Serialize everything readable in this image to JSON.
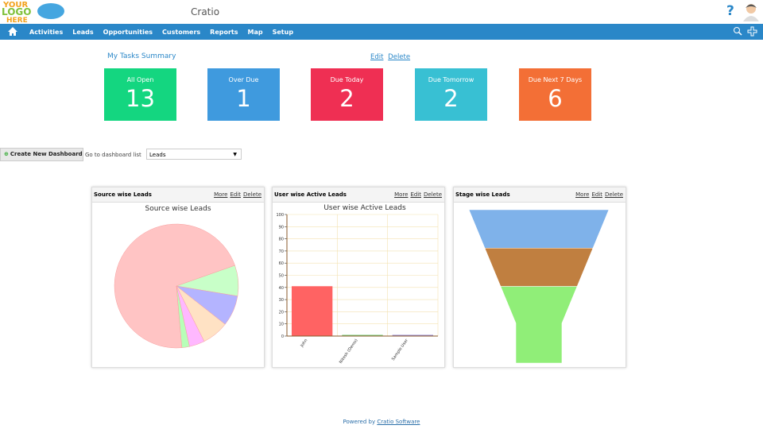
{
  "header": {
    "logo": [
      "YOUR",
      "LOGO",
      "HERE"
    ],
    "app_name": "Cratio",
    "help": "?"
  },
  "nav": {
    "items": [
      "Activities",
      "Leads",
      "Opportunities",
      "Customers",
      "Reports",
      "Map",
      "Setup"
    ]
  },
  "tasks": {
    "title": "My Tasks Summary",
    "actions": [
      "Edit",
      "Delete"
    ],
    "tiles": [
      {
        "label": "All Open",
        "value": 13,
        "color": "#14d680"
      },
      {
        "label": "Over Due",
        "value": 1,
        "color": "#3f9ade"
      },
      {
        "label": "Due Today",
        "value": 2,
        "color": "#ef2f53"
      },
      {
        "label": "Due Tomorrow",
        "value": 2,
        "color": "#38c0d3"
      },
      {
        "label": "Due Next 7 Days",
        "value": 6,
        "color": "#f36f36"
      }
    ]
  },
  "dashboard_bar": {
    "create_button": "Create New Dashboard",
    "goto_label": "Go to dashboard list",
    "selected": "Leads"
  },
  "widgets": [
    {
      "header": "Source wise Leads",
      "actions": [
        "More",
        "Edit",
        "Delete"
      ],
      "chart": {
        "type": "pie",
        "title": "Source wise Leads",
        "values": [
          71,
          8,
          8,
          7,
          4,
          2
        ],
        "colors": [
          "#ffc4c4",
          "#c8ffc8",
          "#b4b4ff",
          "#ffe2c4",
          "#ffb8ff",
          "#b8ffb8"
        ]
      }
    },
    {
      "header": "User wise Active Leads",
      "actions": [
        "More",
        "Edit",
        "Delete"
      ],
      "chart": {
        "type": "bar",
        "title": "User wise Active Leads",
        "categories": [
          "John",
          "Nitesh (Demo)",
          "Sample User"
        ],
        "values": [
          41,
          1,
          1
        ],
        "colors": [
          "#ff6363",
          "#7fd07f",
          "#9b8fd6"
        ],
        "ylim": [
          0,
          100
        ],
        "yticks": [
          0,
          10,
          20,
          30,
          40,
          50,
          60,
          70,
          80,
          90,
          100
        ],
        "grid": true
      }
    },
    {
      "header": "Stage wise Leads",
      "actions": [
        "More",
        "Edit",
        "Delete"
      ],
      "chart": {
        "type": "funnel",
        "values": [
          1,
          1,
          2
        ],
        "colors": [
          "#7fb2ea",
          "#c07f40",
          "#90ee78"
        ]
      }
    }
  ],
  "footer": {
    "text": "Powered by",
    "link": "Cratio Software"
  }
}
